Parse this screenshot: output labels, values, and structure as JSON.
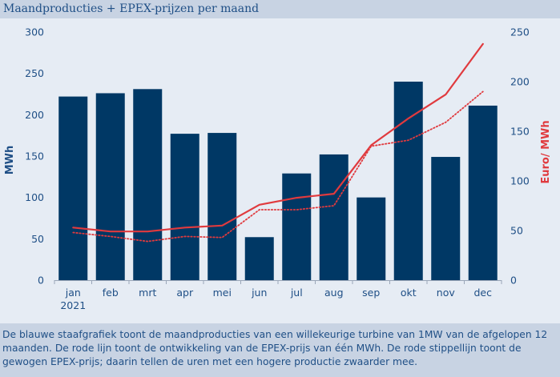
{
  "title": "Maandproducties + EPEX-prijzen per maand",
  "caption": "De blauwe staafgrafiek toont de maandproducties van een willekeurige turbine van 1MW van de afgelopen 12 maanden. De rode lijn toont de ontwikkeling van de EPEX-prijs van één MWh. De rode stippellijn toont de gewogen EPEX-prijs; daarin tellen de uren met een hogere productie zwaarder mee.",
  "colors": {
    "bar": "#003865",
    "line": "#e03a3e",
    "text": "#1f4f86",
    "right_axis_title": "#e03a3e"
  },
  "chart_data": {
    "type": "bar",
    "categories": [
      "jan",
      "feb",
      "mrt",
      "apr",
      "mei",
      "jun",
      "jul",
      "aug",
      "sep",
      "okt",
      "nov",
      "dec"
    ],
    "x_sublabel": "2021",
    "ylabel": "MWh",
    "y2label": "Euro/ MWh",
    "ylim": [
      0,
      300
    ],
    "y2lim": [
      0,
      250
    ],
    "yticks": [
      "0",
      "50",
      "100",
      "150",
      "200",
      "250",
      "300"
    ],
    "y2ticks": [
      "0",
      "50",
      "100",
      "150",
      "200",
      "250"
    ],
    "grid": false,
    "series": [
      {
        "type": "bar",
        "axis": "left",
        "values": [
          222,
          226,
          231,
          177,
          178,
          52,
          129,
          152,
          100,
          240,
          149,
          211
        ]
      },
      {
        "type": "line",
        "style": "solid",
        "axis": "right",
        "values": [
          53,
          49,
          49,
          53,
          55,
          76,
          83,
          87,
          136,
          163,
          187,
          238
        ]
      },
      {
        "type": "line",
        "style": "dotted",
        "axis": "right",
        "values": [
          48,
          44,
          39,
          44,
          43,
          71,
          71,
          75,
          135,
          141,
          159,
          190
        ]
      }
    ]
  }
}
